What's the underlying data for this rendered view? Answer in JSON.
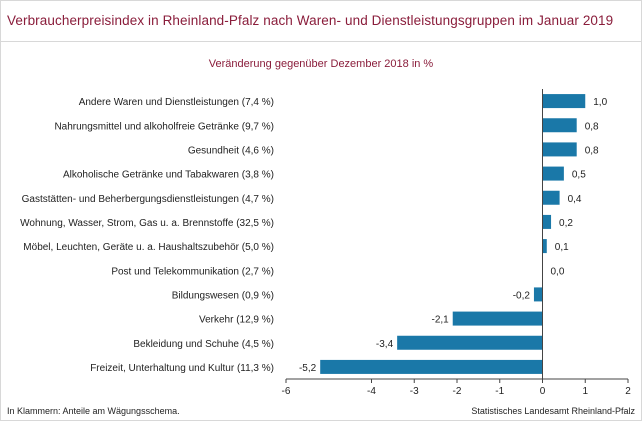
{
  "header": {
    "title": "Verbraucherpreisindex in Rheinland-Pfalz nach Waren- und Dienstleistungsgruppen im Januar 2019",
    "subtitle": "Veränderung gegenüber Dezember 2018 in %"
  },
  "footer": {
    "note": "In Klammern: Anteile am Wägungsschema.",
    "source": "Statistisches Landesamt Rheinland-Pfalz"
  },
  "colors": {
    "bar": "#1a78a8",
    "title": "#8a1d3b",
    "axis": "#444444"
  },
  "chart_data": {
    "type": "bar",
    "orientation": "horizontal",
    "title": "Verbraucherpreisindex in Rheinland-Pfalz nach Waren- und Dienstleistungsgruppen im Januar 2019",
    "subtitle": "Veränderung gegenüber Dezember 2018 in %",
    "categories": [
      "Andere Waren und Dienstleistungen (7,4 %)",
      "Nahrungsmittel und alkoholfreie Getränke (9,7 %)",
      "Gesundheit (4,6 %)",
      "Alkoholische Getränke und Tabakwaren (3,8 %)",
      "Gaststätten- und Beherbergungsdienstleistungen (4,7 %)",
      "Wohnung, Wasser, Strom, Gas u. a. Brennstoffe (32,5 %)",
      "Möbel, Leuchten, Geräte u. a. Haushaltszubehör (5,0 %)",
      "Post und Telekommunikation (2,7 %)",
      "Bildungswesen (0,9 %)",
      "Verkehr (12,9 %)",
      "Bekleidung und Schuhe (4,5 %)",
      "Freizeit, Unterhaltung und Kultur (11,3 %)"
    ],
    "values": [
      1.0,
      0.8,
      0.8,
      0.5,
      0.4,
      0.2,
      0.1,
      0.0,
      -0.2,
      -2.1,
      -3.4,
      -5.2
    ],
    "value_labels": [
      "1,0",
      "0,8",
      "0,8",
      "0,5",
      "0,4",
      "0,2",
      "0,1",
      "0,0",
      "-0,2",
      "-2,1",
      "-3,4",
      "-5,2"
    ],
    "xlim": [
      -6,
      2
    ],
    "x_ticks": [
      "-6",
      "-4",
      "-3",
      "-2",
      "-1",
      "0",
      "1",
      "2"
    ],
    "x_tick_values": [
      -6,
      -4,
      -3,
      -2,
      -1,
      0,
      1,
      2
    ],
    "grid": false,
    "legend": "none"
  }
}
